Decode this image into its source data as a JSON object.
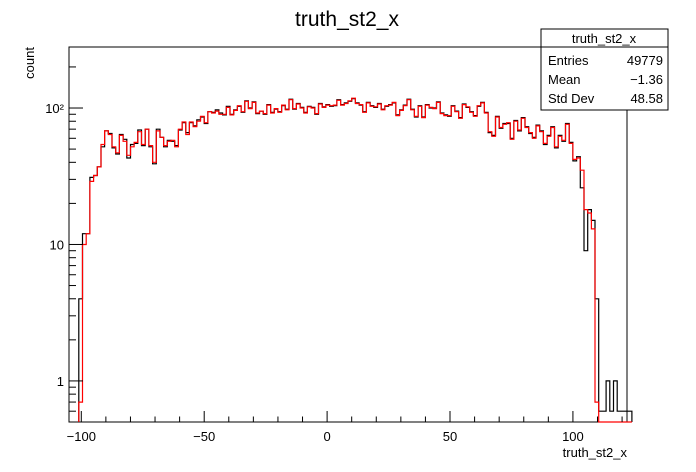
{
  "chart_data": {
    "type": "histogram",
    "title": "truth_st2_x",
    "xlabel": "truth_st2_x",
    "ylabel": "count",
    "xlim": [
      -105,
      122
    ],
    "ylim": [
      0.5,
      280
    ],
    "yscale": "log",
    "bin_width": 1.5,
    "x_ticks": [
      "−100",
      "−50",
      "0",
      "50",
      "100"
    ],
    "x_tick_values": [
      -100,
      -50,
      0,
      50,
      100
    ],
    "y_ticks": [
      "1",
      "10",
      "10²"
    ],
    "y_tick_values": [
      1,
      10,
      100
    ],
    "stats": {
      "name": "truth_st2_x",
      "rows": [
        {
          "label": "Entries",
          "value": "49779"
        },
        {
          "label": "Mean",
          "value": "−1.36"
        },
        {
          "label": "Std Dev",
          "value": "48.58"
        }
      ]
    },
    "series": [
      {
        "color": "#000000",
        "x_start": -101,
        "values": [
          4,
          12,
          12,
          31,
          32,
          37,
          52,
          68,
          65,
          51,
          46,
          64,
          59,
          43,
          54,
          55,
          69,
          53,
          70,
          52,
          39,
          70,
          61,
          52,
          58,
          57,
          53,
          69,
          78,
          66,
          78,
          74,
          82,
          86,
          77,
          94,
          93,
          97,
          92,
          89,
          103,
          90,
          97,
          103,
          93,
          113,
          100,
          111,
          91,
          95,
          90,
          106,
          93,
          98,
          94,
          104,
          98,
          116,
          98,
          108,
          101,
          93,
          103,
          101,
          90,
          108,
          102,
          106,
          103,
          104,
          115,
          106,
          109,
          112,
          117,
          109,
          105,
          94,
          110,
          104,
          101,
          108,
          98,
          103,
          106,
          109,
          89,
          97,
          105,
          116,
          98,
          86,
          104,
          86,
          106,
          100,
          100,
          111,
          92,
          89,
          87,
          104,
          95,
          85,
          107,
          101,
          94,
          88,
          103,
          110,
          93,
          66,
          63,
          87,
          71,
          77,
          77,
          60,
          81,
          68,
          85,
          73,
          65,
          61,
          75,
          68,
          54,
          63,
          73,
          51,
          63,
          57,
          77,
          56,
          41,
          44,
          26,
          9,
          18,
          15,
          4,
          0.6,
          0.6,
          1,
          0.6,
          1,
          0.6,
          0.6,
          0.6,
          0.6
        ]
      },
      {
        "color": "#ff0000",
        "x_start": -101,
        "values": [
          0.7,
          10,
          12,
          29,
          32,
          37,
          54,
          68,
          64,
          52,
          47,
          63,
          57,
          45,
          52,
          56,
          67,
          54,
          70,
          53,
          40,
          68,
          61,
          53,
          57,
          58,
          52,
          70,
          79,
          64,
          79,
          73,
          80,
          87,
          78,
          94,
          92,
          95,
          90,
          90,
          101,
          89,
          96,
          104,
          94,
          112,
          99,
          110,
          92,
          95,
          91,
          105,
          92,
          99,
          93,
          105,
          97,
          115,
          99,
          107,
          100,
          92,
          102,
          100,
          91,
          107,
          101,
          105,
          104,
          105,
          114,
          105,
          108,
          113,
          118,
          108,
          106,
          93,
          109,
          103,
          102,
          107,
          97,
          104,
          105,
          110,
          88,
          96,
          104,
          115,
          97,
          87,
          103,
          85,
          105,
          101,
          99,
          110,
          91,
          88,
          88,
          103,
          94,
          84,
          106,
          102,
          93,
          87,
          104,
          109,
          92,
          67,
          62,
          86,
          72,
          76,
          78,
          59,
          80,
          69,
          84,
          72,
          66,
          60,
          74,
          67,
          55,
          62,
          72,
          52,
          62,
          58,
          76,
          55,
          42,
          43,
          35,
          18,
          17,
          13,
          0.7,
          0.5,
          0.5,
          0.5,
          0.5,
          0.5,
          0.5,
          0.5,
          0.5,
          0.5
        ]
      }
    ]
  }
}
